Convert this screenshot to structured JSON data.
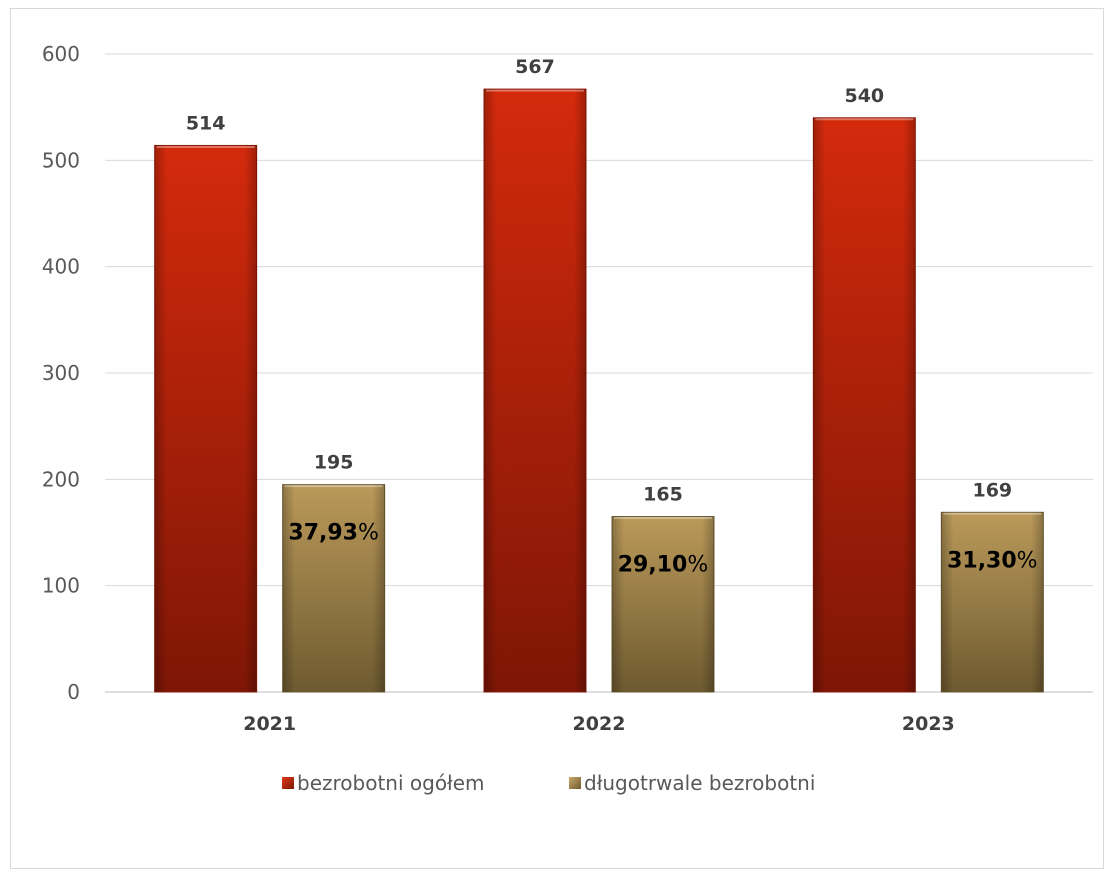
{
  "chart_data": {
    "type": "bar",
    "categories": [
      "2021",
      "2022",
      "2023"
    ],
    "series": [
      {
        "name": "bezrobotni ogółem",
        "values": [
          514,
          567,
          540
        ],
        "color": "#c0200a"
      },
      {
        "name": "długotrwale bezrobotni",
        "values": [
          195,
          165,
          169
        ],
        "color": "#a8884a"
      }
    ],
    "percent_labels": [
      "37,93",
      "29,10",
      "31,30"
    ],
    "percent_suffix": "%",
    "yticks": [
      0,
      100,
      200,
      300,
      400,
      500,
      600
    ],
    "ylim": [
      0,
      600
    ],
    "grid": true,
    "legend_position": "bottom",
    "title": "",
    "xlabel": "",
    "ylabel": ""
  }
}
